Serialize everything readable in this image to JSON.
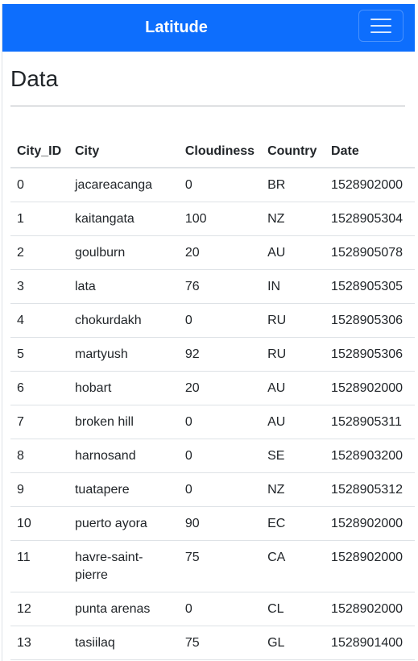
{
  "navbar": {
    "brand": "Latitude",
    "menu_icon": "hamburger-icon"
  },
  "page": {
    "title": "Data"
  },
  "table": {
    "headers": [
      "City_ID",
      "City",
      "Cloudiness",
      "Country",
      "Date"
    ],
    "rows": [
      [
        "0",
        "jacareacanga",
        "0",
        "BR",
        "1528902000"
      ],
      [
        "1",
        "kaitangata",
        "100",
        "NZ",
        "1528905304"
      ],
      [
        "2",
        "goulburn",
        "20",
        "AU",
        "1528905078"
      ],
      [
        "3",
        "lata",
        "76",
        "IN",
        "1528905305"
      ],
      [
        "4",
        "chokurdakh",
        "0",
        "RU",
        "1528905306"
      ],
      [
        "5",
        "martyush",
        "92",
        "RU",
        "1528905306"
      ],
      [
        "6",
        "hobart",
        "20",
        "AU",
        "1528902000"
      ],
      [
        "7",
        "broken hill",
        "0",
        "AU",
        "1528905311"
      ],
      [
        "8",
        "harnosand",
        "0",
        "SE",
        "1528903200"
      ],
      [
        "9",
        "tuatapere",
        "0",
        "NZ",
        "1528905312"
      ],
      [
        "10",
        "puerto ayora",
        "90",
        "EC",
        "1528902000"
      ],
      [
        "11",
        "havre-saint-pierre",
        "75",
        "CA",
        "1528902000"
      ],
      [
        "12",
        "punta arenas",
        "0",
        "CL",
        "1528902000"
      ],
      [
        "13",
        "tasiilaq",
        "75",
        "GL",
        "1528901400"
      ]
    ]
  },
  "colors": {
    "navbar_bg": "#0d6efd",
    "text": "#212529"
  }
}
